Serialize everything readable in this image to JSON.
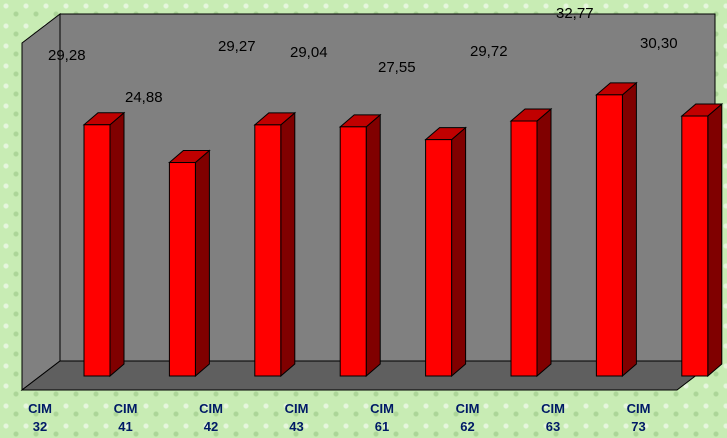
{
  "chart_data": {
    "type": "bar",
    "style": "3d-column",
    "categories": [
      [
        "CIM",
        "32"
      ],
      [
        "CIM",
        "41"
      ],
      [
        "CIM",
        "42"
      ],
      [
        "CIM",
        "43"
      ],
      [
        "CIM",
        "61"
      ],
      [
        "CIM",
        "62"
      ],
      [
        "CIM",
        "63"
      ],
      [
        "CIM",
        "73"
      ]
    ],
    "values": [
      29.28,
      24.88,
      29.27,
      29.04,
      27.55,
      29.72,
      32.77,
      30.3
    ],
    "value_labels": [
      "29,28",
      "24,88",
      "29,27",
      "29,04",
      "27,55",
      "29,72",
      "32,77",
      "30,30"
    ],
    "title": "",
    "xlabel": "",
    "ylabel": "",
    "ylim": [
      0,
      34
    ],
    "grid": false,
    "legend": "none"
  },
  "colors": {
    "bar_front": "#ff0000",
    "bar_side": "#800000",
    "bar_top": "#c00000",
    "plot_back": "#808080",
    "plot_floor": "#5f5f5f"
  }
}
